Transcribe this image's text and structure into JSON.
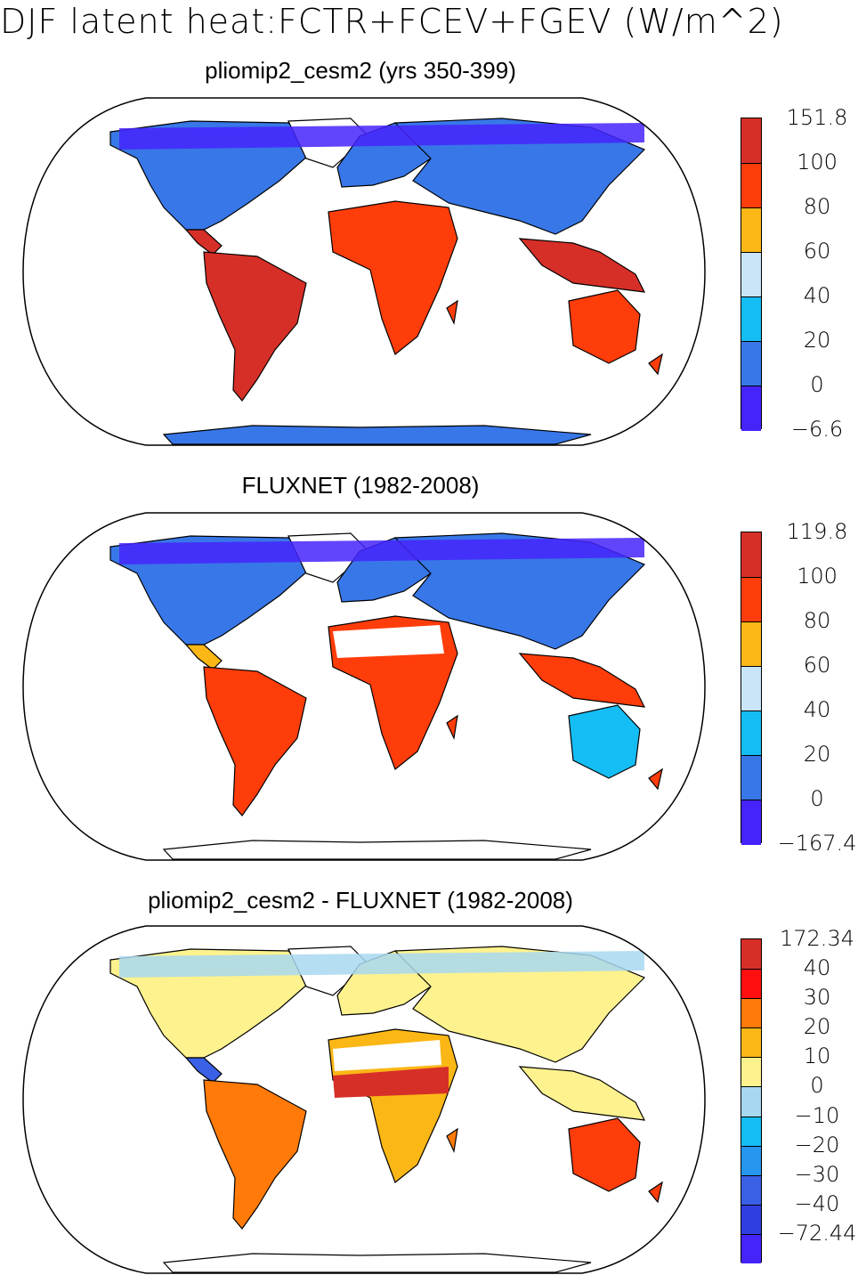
{
  "figure": {
    "title": "DJF latent heat:FCTR+FCEV+FGEV (W/m^2)"
  },
  "panels": [
    {
      "title": "pliomip2_cesm2 (yrs 350-399)",
      "colorbar": {
        "labels": [
          "151.8",
          "100",
          "80",
          "60",
          "40",
          "20",
          "0",
          "−6.6"
        ],
        "colors": [
          "#d62f28",
          "#ff3d0b",
          "#fbb716",
          "#c9e5f7",
          "#15bdf5",
          "#3877e8",
          "#4524fc"
        ]
      }
    },
    {
      "title": "FLUXNET (1982-2008)",
      "colorbar": {
        "labels": [
          "119.8",
          "100",
          "80",
          "60",
          "40",
          "20",
          "0",
          "−167.4"
        ],
        "colors": [
          "#d62f28",
          "#ff3d0b",
          "#fbb716",
          "#c9e5f7",
          "#15bdf5",
          "#3877e8",
          "#4524fc"
        ]
      }
    },
    {
      "title": "pliomip2_cesm2 - FLUXNET (1982-2008)",
      "colorbar": {
        "labels": [
          "172.34",
          "40",
          "30",
          "20",
          "10",
          "0",
          "−10",
          "−20",
          "−30",
          "−40",
          "−72.44"
        ],
        "colors": [
          "#d62f28",
          "#ff0f0f",
          "#ff7a09",
          "#fbb716",
          "#fdf28e",
          "#a8d8f0",
          "#15bdf5",
          "#2696ef",
          "#3a60e6",
          "#2f3ee0",
          "#4524fc"
        ]
      }
    }
  ]
}
